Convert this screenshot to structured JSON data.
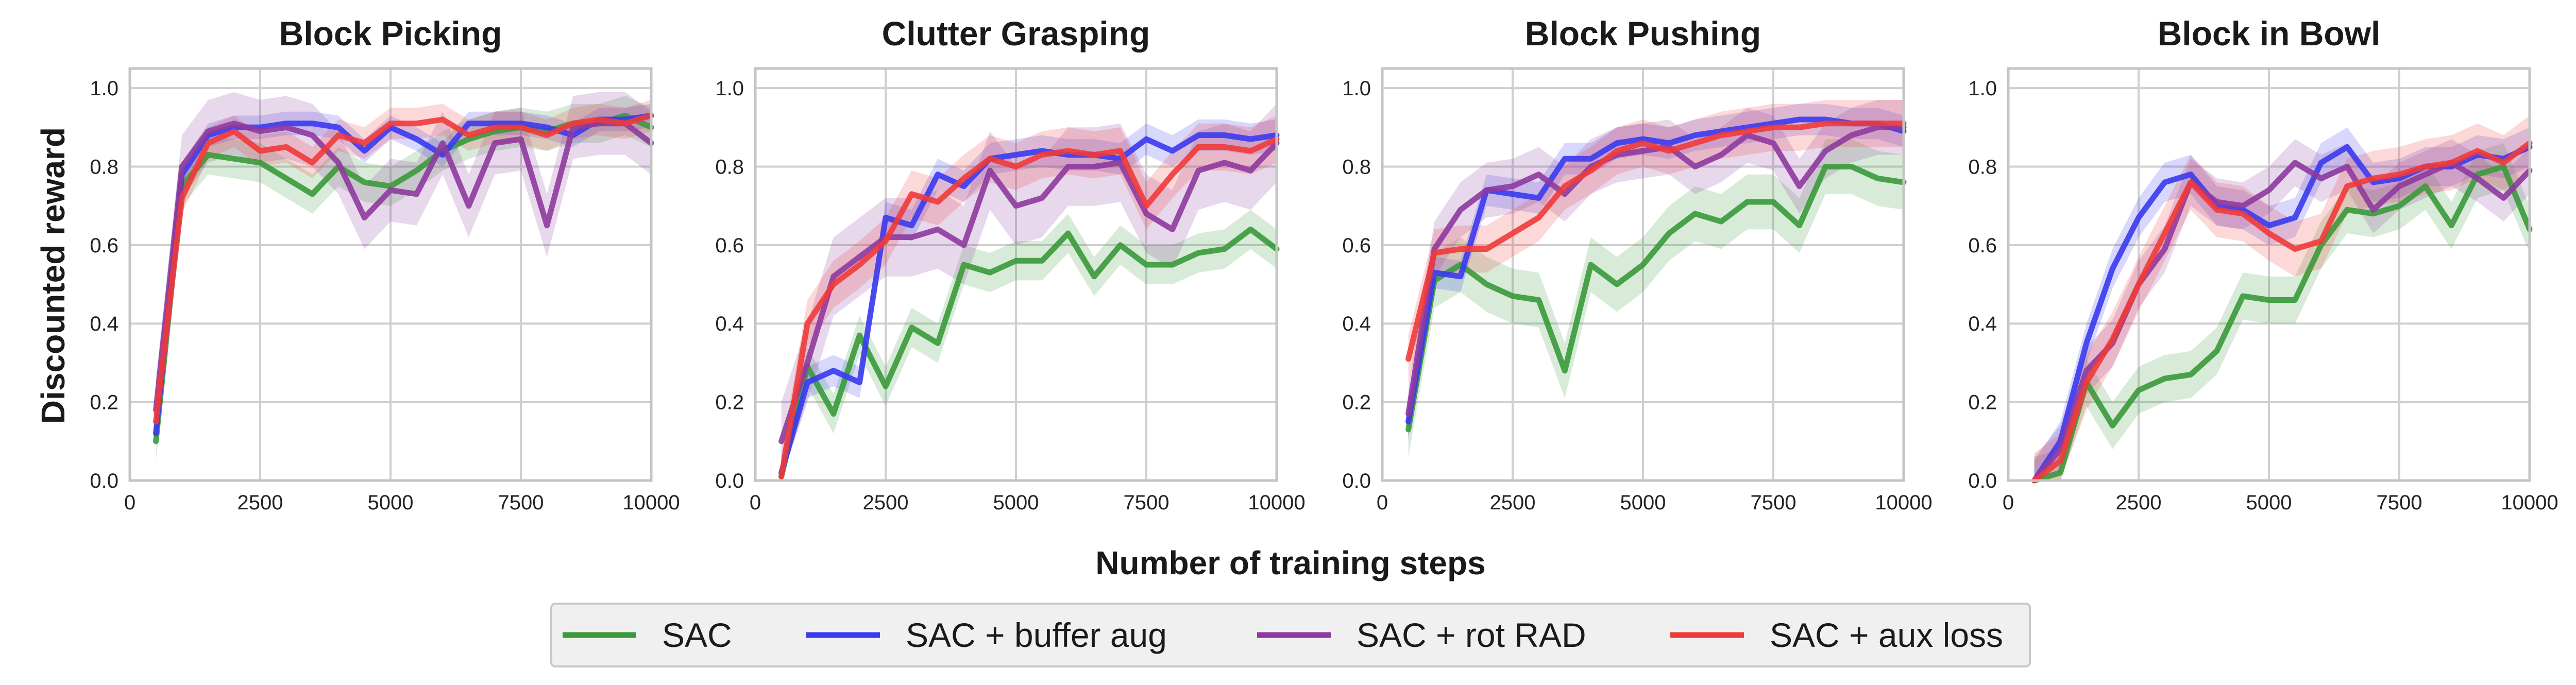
{
  "figure": {
    "ylabel": "Discounted reward",
    "xlabel": "Number of training steps"
  },
  "colors": {
    "SAC": "#3a9a3a",
    "SAC + buffer aug": "#3a3af0",
    "SAC + rot RAD": "#8e3a9e",
    "SAC + aux loss": "#f03a3a"
  },
  "legend": {
    "items": [
      "SAC",
      "SAC + buffer aug",
      "SAC + rot RAD",
      "SAC + aux loss"
    ]
  },
  "chart_data": [
    {
      "type": "line",
      "title": "Block Picking",
      "xlabel": "Number of training steps",
      "ylabel": "Discounted reward",
      "xlim": [
        0,
        10000
      ],
      "ylim": [
        0,
        1.05
      ],
      "xticks": [
        0,
        2500,
        5000,
        7500,
        10000
      ],
      "yticks": [
        0.0,
        0.2,
        0.4,
        0.6,
        0.8,
        1.0
      ],
      "x": [
        500,
        1000,
        1500,
        2000,
        2500,
        3000,
        3500,
        4000,
        4500,
        5000,
        5500,
        6000,
        6500,
        7000,
        7500,
        8000,
        8500,
        9000,
        9500,
        10000
      ],
      "series": [
        {
          "name": "SAC",
          "values": [
            0.1,
            0.75,
            0.83,
            0.82,
            0.81,
            0.77,
            0.73,
            0.8,
            0.76,
            0.75,
            0.79,
            0.84,
            0.87,
            0.89,
            0.9,
            0.89,
            0.91,
            0.91,
            0.93,
            0.9
          ],
          "band": 0.05
        },
        {
          "name": "SAC + buffer aug",
          "values": [
            0.12,
            0.78,
            0.88,
            0.9,
            0.9,
            0.91,
            0.91,
            0.9,
            0.84,
            0.9,
            0.87,
            0.83,
            0.91,
            0.91,
            0.91,
            0.9,
            0.88,
            0.92,
            0.92,
            0.93
          ],
          "band": 0.03
        },
        {
          "name": "SAC + rot RAD",
          "values": [
            0.18,
            0.8,
            0.89,
            0.91,
            0.89,
            0.9,
            0.88,
            0.81,
            0.67,
            0.74,
            0.73,
            0.86,
            0.7,
            0.86,
            0.87,
            0.65,
            0.9,
            0.91,
            0.91,
            0.86
          ],
          "band": 0.08
        },
        {
          "name": "SAC + aux loss",
          "values": [
            0.15,
            0.72,
            0.86,
            0.89,
            0.84,
            0.85,
            0.81,
            0.88,
            0.86,
            0.91,
            0.91,
            0.92,
            0.88,
            0.9,
            0.9,
            0.88,
            0.91,
            0.92,
            0.91,
            0.93
          ],
          "band": 0.04
        }
      ]
    },
    {
      "type": "line",
      "title": "Clutter Grasping",
      "xlabel": "Number of training steps",
      "ylabel": "Discounted reward",
      "xlim": [
        0,
        10000
      ],
      "ylim": [
        0,
        1.05
      ],
      "xticks": [
        0,
        2500,
        5000,
        7500,
        10000
      ],
      "yticks": [
        0.0,
        0.2,
        0.4,
        0.6,
        0.8,
        1.0
      ],
      "x": [
        500,
        1000,
        1500,
        2000,
        2500,
        3000,
        3500,
        4000,
        4500,
        5000,
        5500,
        6000,
        6500,
        7000,
        7500,
        8000,
        8500,
        9000,
        9500,
        10000
      ],
      "series": [
        {
          "name": "SAC",
          "values": [
            0.01,
            0.29,
            0.17,
            0.37,
            0.24,
            0.39,
            0.35,
            0.55,
            0.53,
            0.56,
            0.56,
            0.63,
            0.52,
            0.6,
            0.55,
            0.55,
            0.58,
            0.59,
            0.64,
            0.59
          ],
          "band": 0.05
        },
        {
          "name": "SAC + buffer aug",
          "values": [
            0.02,
            0.25,
            0.28,
            0.25,
            0.67,
            0.65,
            0.78,
            0.75,
            0.82,
            0.83,
            0.84,
            0.83,
            0.83,
            0.82,
            0.87,
            0.84,
            0.88,
            0.88,
            0.87,
            0.88
          ],
          "band": 0.04
        },
        {
          "name": "SAC + rot RAD",
          "values": [
            0.1,
            0.3,
            0.52,
            0.57,
            0.62,
            0.62,
            0.64,
            0.6,
            0.79,
            0.7,
            0.72,
            0.8,
            0.8,
            0.81,
            0.68,
            0.64,
            0.79,
            0.81,
            0.79,
            0.86
          ],
          "band": 0.1
        },
        {
          "name": "SAC + aux loss",
          "values": [
            0.01,
            0.4,
            0.5,
            0.55,
            0.61,
            0.73,
            0.71,
            0.77,
            0.82,
            0.8,
            0.83,
            0.84,
            0.83,
            0.84,
            0.7,
            0.78,
            0.85,
            0.85,
            0.84,
            0.87
          ],
          "band": 0.06
        }
      ]
    },
    {
      "type": "line",
      "title": "Block Pushing",
      "xlabel": "Number of training steps",
      "ylabel": "Discounted reward",
      "xlim": [
        0,
        10000
      ],
      "ylim": [
        0,
        1.05
      ],
      "xticks": [
        0,
        2500,
        5000,
        7500,
        10000
      ],
      "yticks": [
        0.0,
        0.2,
        0.4,
        0.6,
        0.8,
        1.0
      ],
      "x": [
        500,
        1000,
        1500,
        2000,
        2500,
        3000,
        3500,
        4000,
        4500,
        5000,
        5500,
        6000,
        6500,
        7000,
        7500,
        8000,
        8500,
        9000,
        9500,
        10000
      ],
      "series": [
        {
          "name": "SAC",
          "values": [
            0.13,
            0.51,
            0.55,
            0.5,
            0.47,
            0.46,
            0.28,
            0.55,
            0.5,
            0.55,
            0.63,
            0.68,
            0.66,
            0.71,
            0.71,
            0.65,
            0.8,
            0.8,
            0.77,
            0.76
          ],
          "band": 0.07
        },
        {
          "name": "SAC + buffer aug",
          "values": [
            0.15,
            0.53,
            0.52,
            0.74,
            0.73,
            0.72,
            0.82,
            0.82,
            0.86,
            0.87,
            0.86,
            0.88,
            0.89,
            0.9,
            0.91,
            0.92,
            0.92,
            0.91,
            0.91,
            0.89
          ],
          "band": 0.04
        },
        {
          "name": "SAC + rot RAD",
          "values": [
            0.17,
            0.59,
            0.69,
            0.74,
            0.75,
            0.78,
            0.73,
            0.8,
            0.83,
            0.84,
            0.85,
            0.8,
            0.83,
            0.88,
            0.86,
            0.75,
            0.84,
            0.88,
            0.9,
            0.9
          ],
          "band": 0.07
        },
        {
          "name": "SAC + aux loss",
          "values": [
            0.31,
            0.58,
            0.59,
            0.59,
            0.63,
            0.67,
            0.75,
            0.79,
            0.84,
            0.86,
            0.84,
            0.86,
            0.88,
            0.89,
            0.9,
            0.9,
            0.91,
            0.91,
            0.91,
            0.91
          ],
          "band": 0.06
        }
      ]
    },
    {
      "type": "line",
      "title": "Block in Bowl",
      "xlabel": "Number of training steps",
      "ylabel": "Discounted reward",
      "xlim": [
        0,
        10000
      ],
      "ylim": [
        0,
        1.05
      ],
      "xticks": [
        0,
        2500,
        5000,
        7500,
        10000
      ],
      "yticks": [
        0.0,
        0.2,
        0.4,
        0.6,
        0.8,
        1.0
      ],
      "x": [
        500,
        1000,
        1500,
        2000,
        2500,
        3000,
        3500,
        4000,
        4500,
        5000,
        5500,
        6000,
        6500,
        7000,
        7500,
        8000,
        8500,
        9000,
        9500,
        10000
      ],
      "series": [
        {
          "name": "SAC",
          "values": [
            0.0,
            0.02,
            0.25,
            0.14,
            0.23,
            0.26,
            0.27,
            0.33,
            0.47,
            0.46,
            0.46,
            0.6,
            0.69,
            0.68,
            0.7,
            0.75,
            0.65,
            0.78,
            0.8,
            0.64
          ],
          "band": 0.06
        },
        {
          "name": "SAC + buffer aug",
          "values": [
            0.0,
            0.1,
            0.35,
            0.54,
            0.67,
            0.76,
            0.78,
            0.7,
            0.69,
            0.65,
            0.67,
            0.81,
            0.85,
            0.76,
            0.77,
            0.8,
            0.8,
            0.83,
            0.82,
            0.85
          ],
          "band": 0.05
        },
        {
          "name": "SAC + rot RAD",
          "values": [
            0.0,
            0.08,
            0.28,
            0.35,
            0.5,
            0.59,
            0.76,
            0.71,
            0.7,
            0.74,
            0.81,
            0.77,
            0.8,
            0.69,
            0.75,
            0.78,
            0.81,
            0.77,
            0.72,
            0.79
          ],
          "band": 0.06
        },
        {
          "name": "SAC + aux loss",
          "values": [
            0.0,
            0.05,
            0.25,
            0.36,
            0.5,
            0.63,
            0.76,
            0.69,
            0.68,
            0.63,
            0.59,
            0.61,
            0.75,
            0.77,
            0.78,
            0.8,
            0.81,
            0.84,
            0.81,
            0.86
          ],
          "band": 0.07
        }
      ]
    }
  ]
}
